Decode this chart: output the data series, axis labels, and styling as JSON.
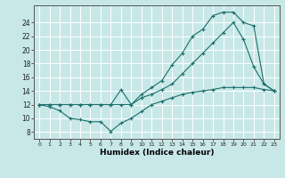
{
  "xlabel": "Humidex (Indice chaleur)",
  "xlim": [
    -0.5,
    23.5
  ],
  "ylim": [
    7.0,
    26.5
  ],
  "xticks": [
    0,
    1,
    2,
    3,
    4,
    5,
    6,
    7,
    8,
    9,
    10,
    11,
    12,
    13,
    14,
    15,
    16,
    17,
    18,
    19,
    20,
    21,
    22,
    23
  ],
  "yticks": [
    8,
    10,
    12,
    14,
    16,
    18,
    20,
    22,
    24
  ],
  "bg_color": "#c8e8e8",
  "grid_color": "#b0d8d8",
  "line_color": "#1a6e6a",
  "line1_x": [
    0,
    1,
    2,
    3,
    4,
    5,
    6,
    7,
    8,
    9,
    10,
    11,
    12,
    13,
    14,
    15,
    16,
    17,
    18,
    19,
    20,
    21,
    22,
    23
  ],
  "line1_y": [
    12.0,
    11.7,
    11.1,
    10.0,
    9.8,
    9.5,
    9.5,
    8.1,
    9.3,
    10.0,
    11.0,
    12.0,
    12.5,
    13.0,
    13.5,
    13.8,
    14.0,
    14.2,
    14.5,
    14.5,
    14.5,
    14.5,
    14.2,
    14.0
  ],
  "line2_x": [
    0,
    1,
    2,
    3,
    4,
    5,
    6,
    7,
    8,
    9,
    10,
    11,
    12,
    13,
    14,
    15,
    16,
    17,
    18,
    19,
    20,
    21,
    22,
    23
  ],
  "line2_y": [
    12.0,
    12.0,
    12.0,
    12.0,
    12.0,
    12.0,
    12.0,
    12.0,
    12.0,
    12.0,
    13.5,
    14.5,
    15.5,
    17.8,
    19.5,
    22.0,
    23.0,
    25.0,
    25.5,
    25.5,
    24.0,
    23.5,
    15.0,
    14.0
  ],
  "line3_x": [
    0,
    1,
    2,
    3,
    4,
    5,
    6,
    7,
    8,
    9,
    10,
    11,
    12,
    13,
    14,
    15,
    16,
    17,
    18,
    19,
    20,
    21,
    22,
    23
  ],
  "line3_y": [
    12.0,
    12.0,
    12.0,
    12.0,
    12.0,
    12.0,
    12.0,
    12.0,
    14.2,
    12.0,
    13.0,
    13.5,
    14.2,
    15.0,
    16.5,
    18.0,
    19.5,
    21.0,
    22.5,
    24.0,
    21.5,
    17.5,
    15.0,
    14.0
  ]
}
